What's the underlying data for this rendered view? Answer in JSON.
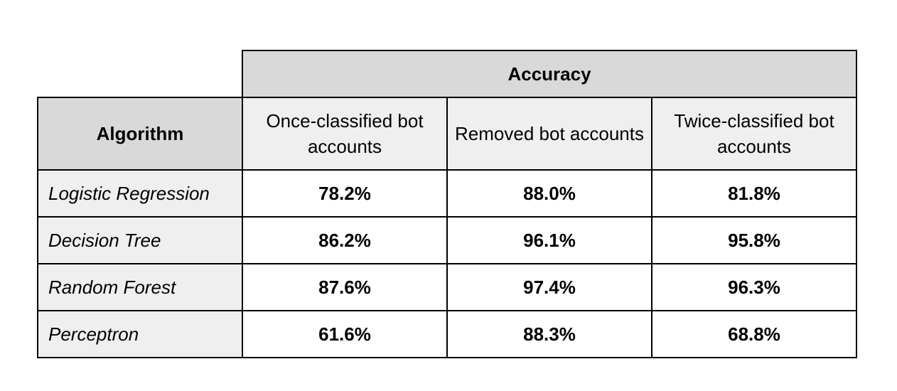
{
  "table": {
    "group_header": "Accuracy",
    "algorithm_header": "Algorithm",
    "columns": [
      "Once-classified bot accounts",
      "Removed bot accounts",
      "Twice-classified bot accounts"
    ],
    "rows": [
      {
        "algorithm": "Logistic Regression",
        "values": [
          "78.2%",
          "88.0%",
          "81.8%"
        ]
      },
      {
        "algorithm": "Decision Tree",
        "values": [
          "86.2%",
          "96.1%",
          "95.8%"
        ]
      },
      {
        "algorithm": "Random Forest",
        "values": [
          "87.6%",
          "97.4%",
          "96.3%"
        ]
      },
      {
        "algorithm": "Perceptron",
        "values": [
          "61.6%",
          "88.3%",
          "68.8%"
        ]
      }
    ]
  },
  "colors": {
    "header_fill": "#d9d9d9",
    "subheader_fill": "#efefef",
    "cell_fill": "#ffffff",
    "border": "#000000"
  }
}
